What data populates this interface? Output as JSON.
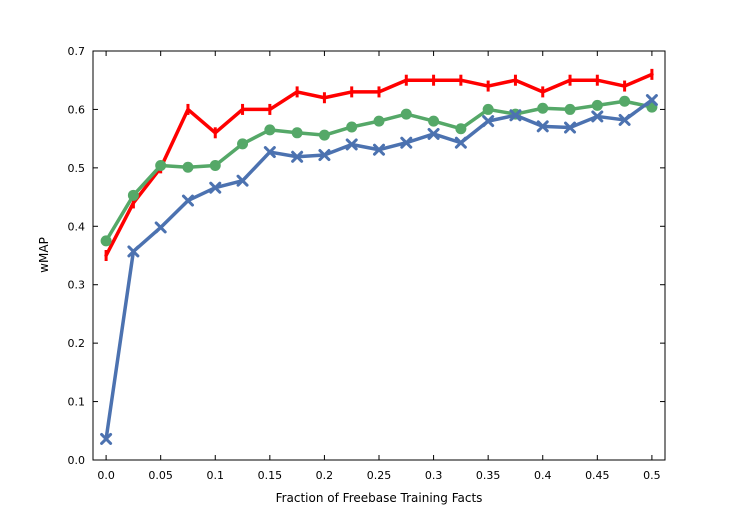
{
  "chart_data": {
    "type": "line",
    "title": "",
    "xlabel": "Fraction of Freebase Training Facts",
    "ylabel": "wMAP",
    "xlim": [
      -0.012,
      0.512
    ],
    "ylim": [
      0.0,
      0.7
    ],
    "grid": false,
    "x": [
      0.0,
      0.025,
      0.05,
      0.075,
      0.1,
      0.125,
      0.15,
      0.175,
      0.2,
      0.225,
      0.25,
      0.275,
      0.3,
      0.325,
      0.35,
      0.375,
      0.4,
      0.425,
      0.45,
      0.475,
      0.5
    ],
    "x_ticks": [
      "0.0",
      "0.05",
      "0.1",
      "0.15",
      "0.2",
      "0.25",
      "0.3",
      "0.35",
      "0.4",
      "0.45",
      "0.5"
    ],
    "y_ticks": [
      "0.0",
      "0.1",
      "0.2",
      "0.3",
      "0.4",
      "0.5",
      "0.6",
      "0.7"
    ],
    "series": [
      {
        "color": "#ff0000",
        "marker": "vertical-tick",
        "values": [
          0.35,
          0.44,
          0.5,
          0.6,
          0.56,
          0.6,
          0.6,
          0.63,
          0.62,
          0.63,
          0.63,
          0.65,
          0.65,
          0.65,
          0.64,
          0.65,
          0.63,
          0.65,
          0.65,
          0.64,
          0.66
        ]
      },
      {
        "color": "#55a868",
        "marker": "circle",
        "values": [
          0.375,
          0.453,
          0.504,
          0.501,
          0.504,
          0.541,
          0.565,
          0.56,
          0.556,
          0.57,
          0.58,
          0.592,
          0.58,
          0.567,
          0.6,
          0.592,
          0.602,
          0.6,
          0.607,
          0.614,
          0.604
        ]
      },
      {
        "color": "#4c72b0",
        "marker": "x",
        "values": [
          0.036,
          0.357,
          0.398,
          0.444,
          0.466,
          0.478,
          0.527,
          0.519,
          0.522,
          0.54,
          0.531,
          0.543,
          0.558,
          0.543,
          0.58,
          0.59,
          0.571,
          0.569,
          0.588,
          0.582,
          0.616
        ]
      }
    ]
  }
}
